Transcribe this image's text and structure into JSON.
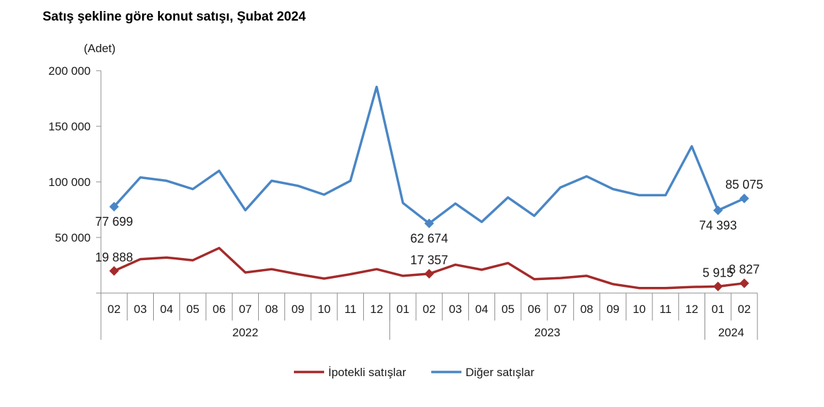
{
  "title": "Satış şekline göre konut satışı, Şubat 2024",
  "unit_label": "(Adet)",
  "colors": {
    "ipotekli": "#a52a2a",
    "diger": "#4a86c5",
    "axis": "#8c8c8c"
  },
  "chart_data": {
    "type": "line",
    "title": "Satış şekline göre konut satışı, Şubat 2024",
    "ylabel": "(Adet)",
    "ylim": [
      0,
      200000
    ],
    "y_ticks": [
      50000,
      100000,
      150000,
      200000
    ],
    "y_tick_labels": [
      "50 000",
      "100 000",
      "150 000",
      "200 000"
    ],
    "categories": [
      "02",
      "03",
      "04",
      "05",
      "06",
      "07",
      "08",
      "09",
      "10",
      "11",
      "12",
      "01",
      "02",
      "03",
      "04",
      "05",
      "06",
      "07",
      "08",
      "09",
      "10",
      "11",
      "12",
      "01",
      "02"
    ],
    "years": [
      {
        "label": "2022",
        "start": 0,
        "end": 10
      },
      {
        "label": "2023",
        "start": 11,
        "end": 22
      },
      {
        "label": "2024",
        "start": 23,
        "end": 24
      }
    ],
    "series": [
      {
        "name": "Diğer satışlar",
        "values": [
          77699,
          104000,
          101000,
          93500,
          110000,
          74500,
          101000,
          96500,
          88500,
          101000,
          185500,
          81000,
          62674,
          80500,
          64000,
          86000,
          69500,
          95000,
          105000,
          93500,
          88000,
          88000,
          132000,
          74393,
          85075
        ],
        "labels": [
          {
            "index": 0,
            "text": "77 699",
            "pos": "below"
          },
          {
            "index": 12,
            "text": "62 674",
            "pos": "below"
          },
          {
            "index": 23,
            "text": "74 393",
            "pos": "below"
          },
          {
            "index": 24,
            "text": "85 075",
            "pos": "above"
          }
        ]
      },
      {
        "name": "İpotekli satışlar",
        "values": [
          19888,
          30500,
          32000,
          29500,
          40500,
          18500,
          21500,
          17000,
          13000,
          17000,
          21500,
          15500,
          17357,
          25500,
          21000,
          27000,
          12500,
          13500,
          15500,
          8000,
          4500,
          4500,
          5500,
          5915,
          8827
        ],
        "labels": [
          {
            "index": 0,
            "text": "19 888",
            "pos": "above"
          },
          {
            "index": 12,
            "text": "17 357",
            "pos": "above"
          },
          {
            "index": 23,
            "text": "5 915",
            "pos": "above"
          },
          {
            "index": 24,
            "text": "8 827",
            "pos": "above"
          }
        ]
      }
    ],
    "legend": {
      "placement": "bottom",
      "entries": [
        "İpotekli satışlar",
        "Diğer satışlar"
      ]
    },
    "grid": false
  }
}
